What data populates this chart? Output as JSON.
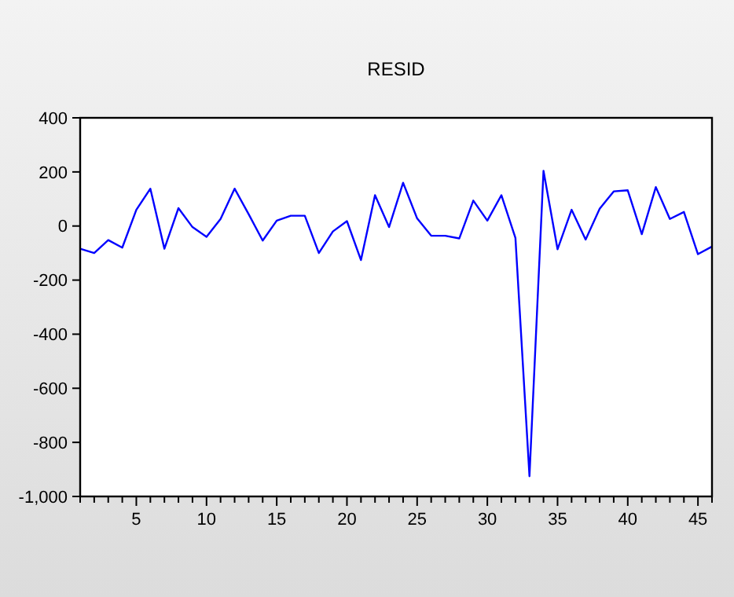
{
  "chart_data": {
    "type": "line",
    "title": "RESID",
    "x": [
      1,
      2,
      3,
      4,
      5,
      6,
      7,
      8,
      9,
      10,
      11,
      12,
      13,
      14,
      15,
      16,
      17,
      18,
      19,
      20,
      21,
      22,
      23,
      24,
      25,
      26,
      27,
      28,
      29,
      30,
      31,
      32,
      33,
      34,
      35,
      36,
      37,
      38,
      39,
      40,
      41,
      42,
      43,
      44,
      45,
      46
    ],
    "series": [
      {
        "color": "#0000ff",
        "values": [
          -84,
          -100,
          -52,
          -80,
          60,
          138,
          -84,
          66,
          -4,
          -40,
          26,
          138,
          44,
          -54,
          20,
          38,
          38,
          -100,
          -20,
          18,
          -126,
          114,
          -4,
          160,
          28,
          -36,
          -36,
          -46,
          94,
          20,
          114,
          -44,
          -925,
          204,
          -86,
          60,
          -50,
          64,
          128,
          132,
          -30,
          144,
          26,
          52,
          -104,
          -76
        ]
      }
    ],
    "xlim": [
      1,
      46
    ],
    "xticks": [
      {
        "value": 1,
        "label": null
      },
      {
        "value": 2,
        "label": null
      },
      {
        "value": 3,
        "label": null
      },
      {
        "value": 4,
        "label": null
      },
      5,
      {
        "value": 6,
        "label": null
      },
      {
        "value": 7,
        "label": null
      },
      {
        "value": 8,
        "label": null
      },
      {
        "value": 9,
        "label": null
      },
      10,
      {
        "value": 11,
        "label": null
      },
      {
        "value": 12,
        "label": null
      },
      {
        "value": 13,
        "label": null
      },
      {
        "value": 14,
        "label": null
      },
      15,
      {
        "value": 16,
        "label": null
      },
      {
        "value": 17,
        "label": null
      },
      {
        "value": 18,
        "label": null
      },
      {
        "value": 19,
        "label": null
      },
      20,
      {
        "value": 21,
        "label": null
      },
      {
        "value": 22,
        "label": null
      },
      {
        "value": 23,
        "label": null
      },
      {
        "value": 24,
        "label": null
      },
      25,
      {
        "value": 26,
        "label": null
      },
      {
        "value": 27,
        "label": null
      },
      {
        "value": 28,
        "label": null
      },
      {
        "value": 29,
        "label": null
      },
      30,
      {
        "value": 31,
        "label": null
      },
      {
        "value": 32,
        "label": null
      },
      {
        "value": 33,
        "label": null
      },
      {
        "value": 34,
        "label": null
      },
      35,
      {
        "value": 36,
        "label": null
      },
      {
        "value": 37,
        "label": null
      },
      {
        "value": 38,
        "label": null
      },
      {
        "value": 39,
        "label": null
      },
      40,
      {
        "value": 41,
        "label": null
      },
      {
        "value": 42,
        "label": null
      },
      {
        "value": 43,
        "label": null
      },
      {
        "value": 44,
        "label": null
      },
      45,
      {
        "value": 46,
        "label": null
      }
    ],
    "ylim": [
      -1000,
      400
    ],
    "yticks": [
      {
        "value": -1000,
        "label": "-1,000"
      },
      -800,
      -600,
      -400,
      -200,
      0,
      200,
      400
    ],
    "grid": false,
    "marker": "none",
    "line_style": "solid"
  }
}
